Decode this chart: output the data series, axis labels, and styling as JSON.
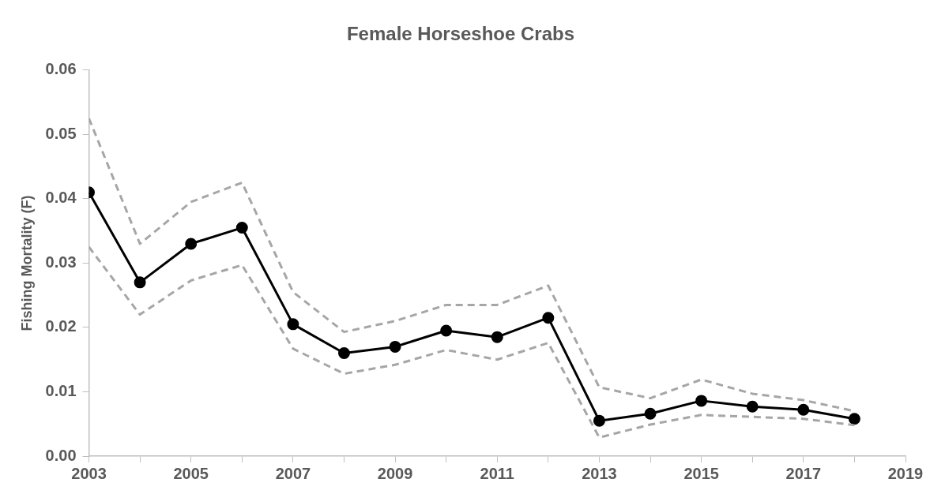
{
  "chart_data": {
    "type": "line",
    "title": "Female Horseshoe Crabs",
    "ylabel": "Fishing Mortality (F)",
    "x": [
      2003,
      2004,
      2005,
      2006,
      2007,
      2008,
      2009,
      2010,
      2011,
      2012,
      2013,
      2014,
      2015,
      2016,
      2017,
      2018
    ],
    "series": [
      {
        "color": "#a6a6a6",
        "line_style": "dashed",
        "marker": "none",
        "values": [
          0.0525,
          0.033,
          0.0395,
          0.0425,
          0.0255,
          0.0193,
          0.021,
          0.0235,
          0.0235,
          0.0265,
          0.0107,
          0.009,
          0.0119,
          0.0097,
          0.0087,
          0.007
        ]
      },
      {
        "color": "#a6a6a6",
        "line_style": "dashed",
        "marker": "none",
        "values": [
          0.0325,
          0.022,
          0.0273,
          0.0297,
          0.0167,
          0.0128,
          0.0142,
          0.0165,
          0.015,
          0.0176,
          0.0029,
          0.0049,
          0.0064,
          0.0061,
          0.0058,
          0.0048
        ]
      },
      {
        "color": "#000000",
        "line_style": "solid",
        "marker": "circle",
        "values": [
          0.041,
          0.027,
          0.033,
          0.0355,
          0.0205,
          0.016,
          0.017,
          0.0195,
          0.0185,
          0.0215,
          0.0055,
          0.0066,
          0.0086,
          0.0077,
          0.0072,
          0.0058
        ]
      }
    ],
    "xlim": [
      2003,
      2019
    ],
    "xticks": [
      2003,
      {
        "value": 2004,
        "label": null
      },
      2005,
      {
        "value": 2006,
        "label": null
      },
      2007,
      {
        "value": 2008,
        "label": null
      },
      2009,
      {
        "value": 2010,
        "label": null
      },
      2011,
      {
        "value": 2012,
        "label": null
      },
      2013,
      {
        "value": 2014,
        "label": null
      },
      2015,
      {
        "value": 2016,
        "label": null
      },
      2017,
      {
        "value": 2018,
        "label": null
      },
      2019
    ],
    "ylim": [
      0,
      0.06
    ],
    "yticks": [
      {
        "value": 0,
        "label": "0.00"
      },
      {
        "value": 0.01,
        "label": "0.01"
      },
      {
        "value": 0.02,
        "label": "0.02"
      },
      {
        "value": 0.03,
        "label": "0.03"
      },
      {
        "value": 0.04,
        "label": "0.04"
      },
      {
        "value": 0.05,
        "label": "0.05"
      },
      {
        "value": 0.06,
        "label": "0.06"
      }
    ],
    "grid": false,
    "legend": false
  }
}
